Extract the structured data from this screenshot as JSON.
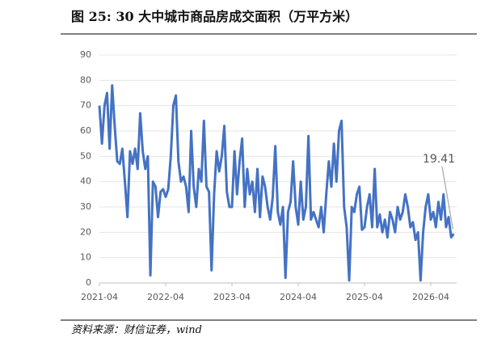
{
  "chart_data": {
    "type": "line",
    "title": "图 25:  30 大中城市商品房成交面积（万平方米）",
    "source": "资料来源：财信证券，wind",
    "categories": [
      "2021-04",
      null,
      null,
      null,
      null,
      null,
      null,
      null,
      null,
      null,
      null,
      null,
      null,
      null,
      null,
      null,
      null,
      null,
      null,
      null,
      null,
      null,
      null,
      null,
      null,
      null,
      "2022-04",
      null,
      null,
      null,
      null,
      null,
      null,
      null,
      null,
      null,
      null,
      null,
      null,
      null,
      null,
      null,
      null,
      null,
      null,
      null,
      null,
      null,
      null,
      null,
      null,
      null,
      "2023-04",
      null,
      null,
      null,
      null,
      null,
      null,
      null,
      null,
      null,
      null,
      null,
      null,
      null,
      null,
      null,
      null,
      null,
      null,
      null,
      null,
      null,
      null,
      null,
      null,
      null,
      "2024-04",
      null,
      null,
      null,
      null,
      null,
      null,
      null,
      null,
      null,
      null,
      null,
      null,
      null,
      null,
      null,
      null,
      null,
      null,
      null,
      null,
      null,
      null,
      null,
      null,
      null,
      "2025-04",
      null,
      null,
      null,
      null,
      null,
      null,
      null,
      null,
      null,
      null,
      null,
      null,
      null,
      null,
      null,
      null,
      null,
      null,
      null,
      null,
      null,
      null,
      null,
      null,
      null,
      "2026-04",
      null,
      null,
      null,
      null,
      null,
      null,
      null,
      null,
      null
    ],
    "series": [
      {
        "name": "30大中城市商品房成交面积",
        "color": "#4472c4",
        "values": [
          70,
          55,
          70,
          75,
          53,
          78,
          62,
          48,
          47,
          53,
          40,
          26,
          52,
          47,
          53,
          45,
          67,
          52,
          45,
          50,
          3,
          40,
          38,
          26,
          36,
          37,
          34,
          37,
          50,
          70,
          74,
          48,
          40,
          42,
          38,
          28,
          60,
          38,
          30,
          45,
          40,
          64,
          38,
          36,
          5,
          35,
          52,
          44,
          50,
          62,
          36,
          30,
          30,
          52,
          35,
          48,
          57,
          30,
          45,
          35,
          40,
          28,
          45,
          26,
          42,
          38,
          30,
          25,
          34,
          54,
          28,
          23,
          30,
          2,
          28,
          32,
          48,
          30,
          23,
          40,
          25,
          30,
          58,
          25,
          28,
          25,
          22,
          30,
          20,
          35,
          48,
          38,
          55,
          40,
          60,
          64,
          30,
          22,
          1,
          30,
          28,
          35,
          38,
          21,
          22,
          30,
          35,
          22,
          45,
          22,
          27,
          20,
          25,
          18,
          28,
          25,
          20,
          30,
          25,
          28,
          35,
          30,
          22,
          24,
          17,
          20,
          1,
          20,
          30,
          35,
          25,
          28,
          22,
          32,
          25,
          35,
          22,
          26,
          18,
          19.41
        ]
      }
    ],
    "ylim": [
      0,
      90
    ],
    "yticks": [
      0,
      10,
      20,
      30,
      40,
      50,
      60,
      70,
      80,
      90
    ],
    "grid": true
  }
}
